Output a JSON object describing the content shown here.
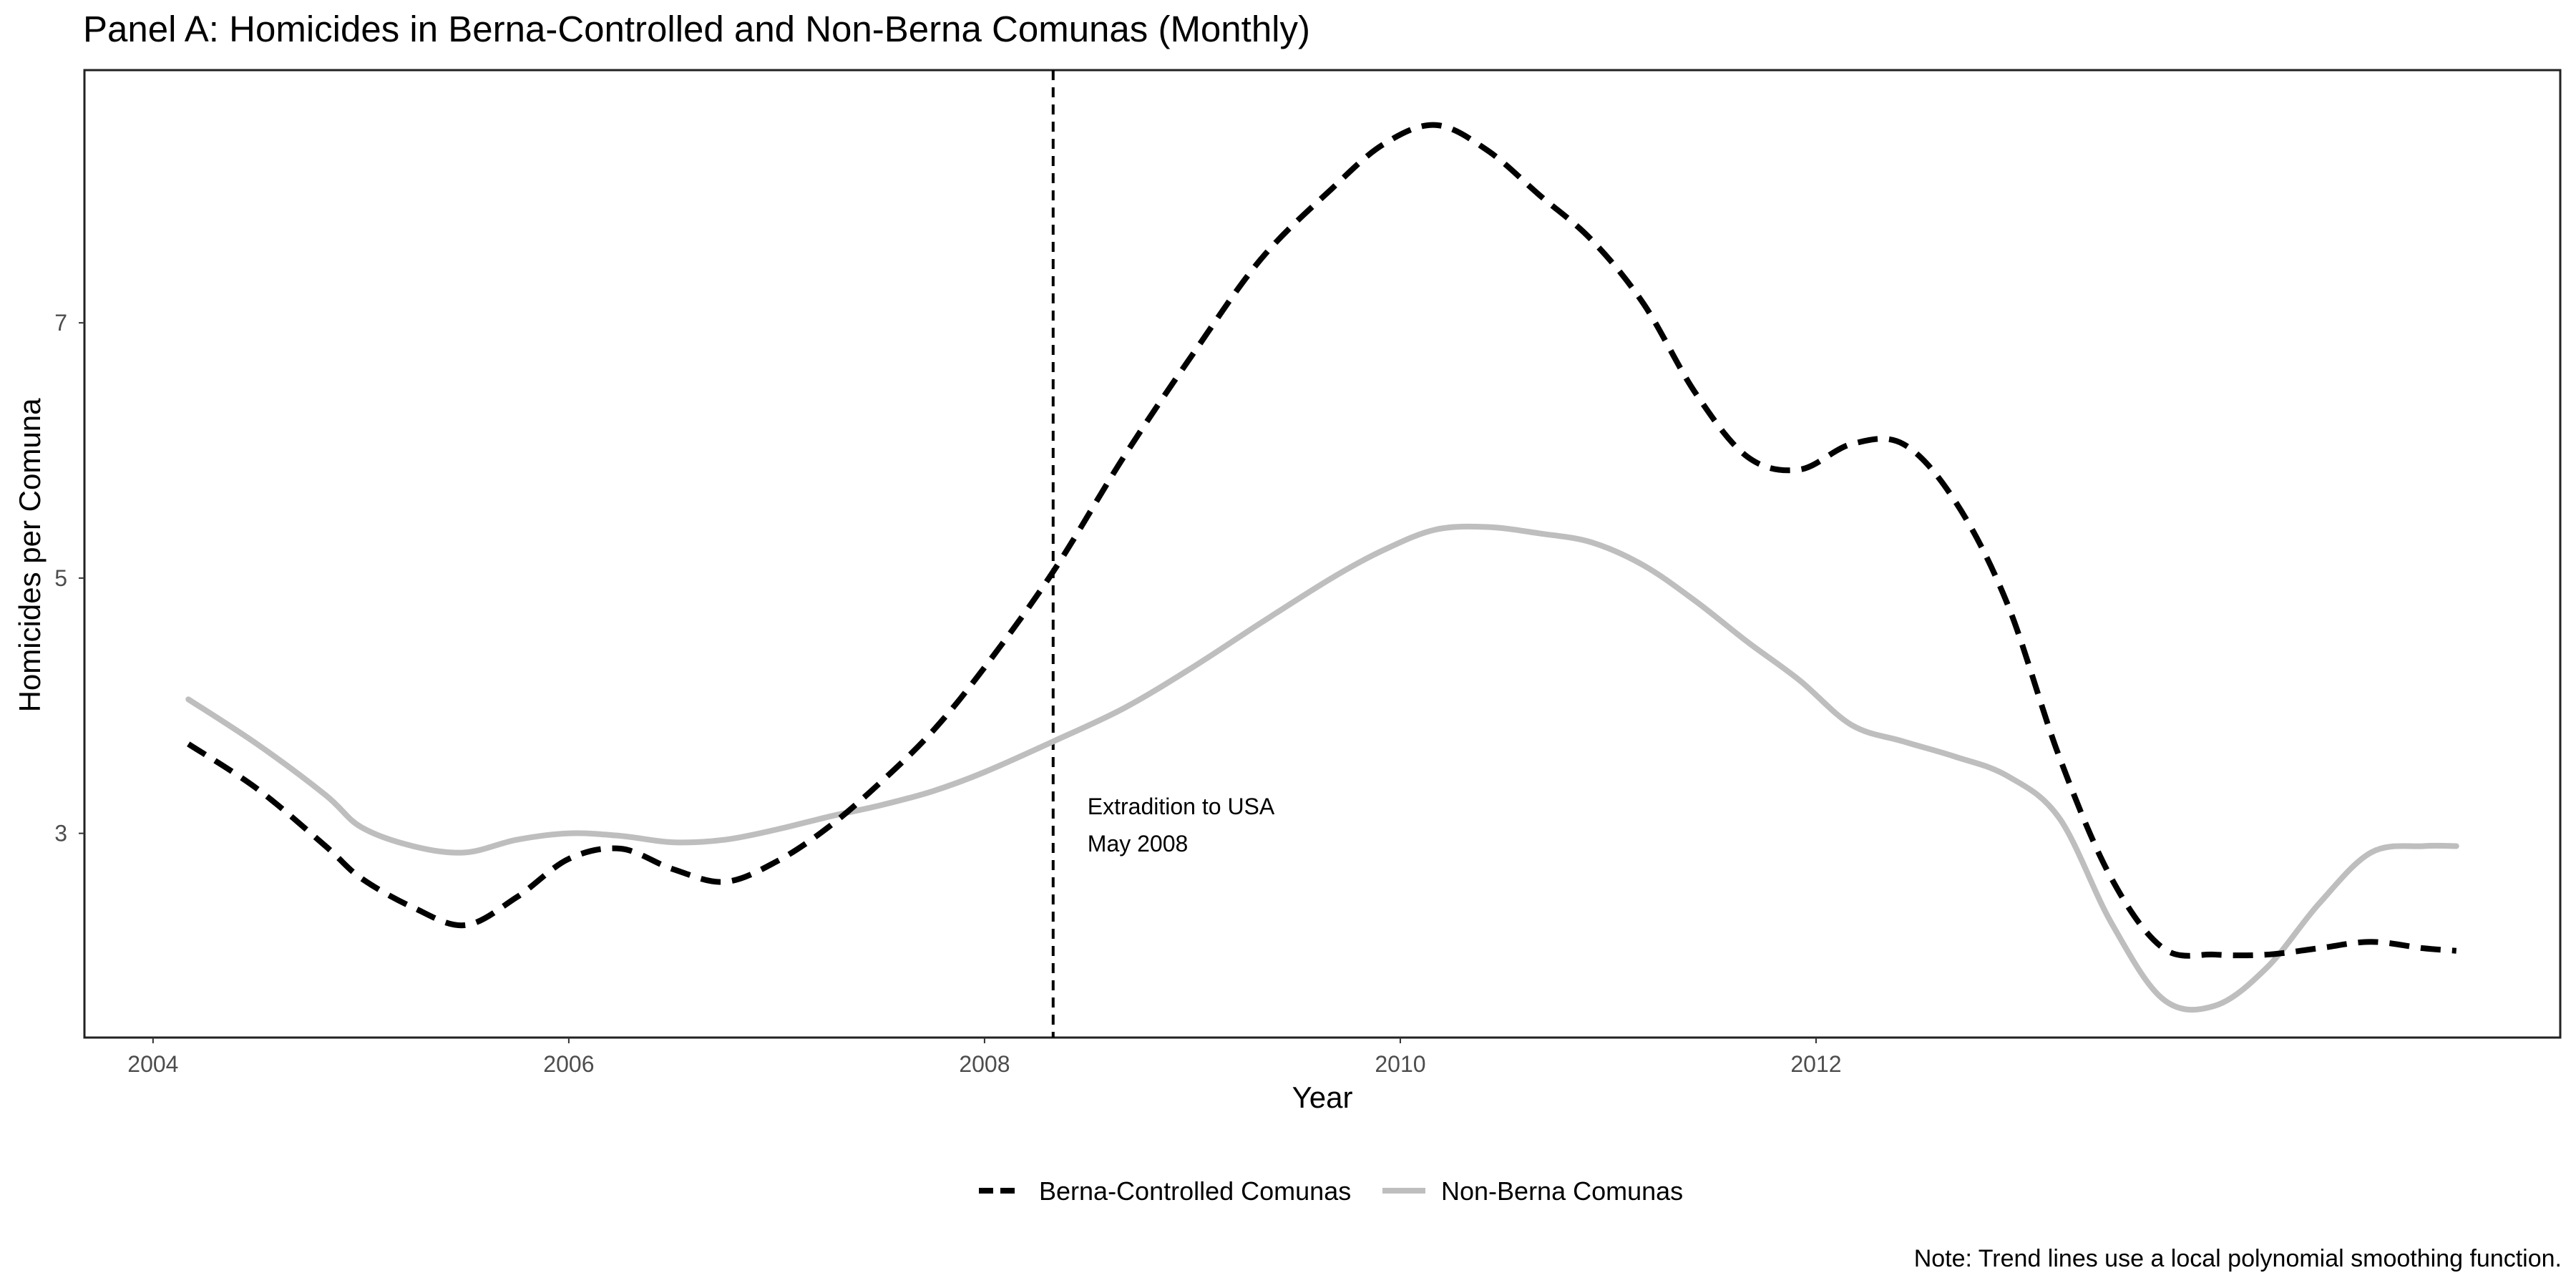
{
  "chart_data": {
    "type": "line",
    "title": "Panel A: Homicides in Berna-Controlled and Non-Berna Comunas (Monthly)",
    "xlabel": "Year",
    "ylabel": "Homicides per Comuna",
    "xlim": [
      2003.67,
      2015.58
    ],
    "ylim": [
      1.4,
      8.98
    ],
    "x_ticks": [
      2004,
      2006,
      2008,
      2010,
      2012
    ],
    "y_ticks": [
      3,
      5,
      7
    ],
    "grid": false,
    "legend_position": "bottom",
    "x": [
      2004.17,
      2004.5,
      2004.83,
      2005.0,
      2005.25,
      2005.5,
      2005.75,
      2006.0,
      2006.25,
      2006.5,
      2006.75,
      2007.0,
      2007.25,
      2007.5,
      2007.75,
      2008.0,
      2008.33,
      2008.67,
      2009.0,
      2009.33,
      2009.67,
      2009.92,
      2010.17,
      2010.42,
      2010.67,
      2010.92,
      2011.17,
      2011.42,
      2011.67,
      2011.92,
      2012.17,
      2012.42,
      2012.67,
      2012.92,
      2013.17,
      2013.42,
      2013.67,
      2013.92,
      2014.17,
      2014.42,
      2014.67,
      2014.92,
      2015.08
    ],
    "series": [
      {
        "name": "Berna-Controlled Comunas",
        "color": "#000000",
        "style": "dashed",
        "values": [
          3.7,
          3.35,
          2.9,
          2.65,
          2.42,
          2.28,
          2.5,
          2.8,
          2.88,
          2.72,
          2.62,
          2.78,
          3.05,
          3.4,
          3.8,
          4.3,
          5.05,
          5.95,
          6.75,
          7.5,
          8.05,
          8.4,
          8.55,
          8.35,
          8.0,
          7.65,
          7.15,
          6.45,
          5.95,
          5.85,
          6.05,
          6.05,
          5.6,
          4.8,
          3.6,
          2.65,
          2.1,
          2.05,
          2.05,
          2.1,
          2.15,
          2.1,
          2.08
        ]
      },
      {
        "name": "Non-Berna Comunas",
        "color": "#bebebe",
        "style": "solid",
        "values": [
          4.05,
          3.7,
          3.3,
          3.05,
          2.9,
          2.85,
          2.95,
          3.0,
          2.98,
          2.93,
          2.95,
          3.03,
          3.13,
          3.22,
          3.33,
          3.48,
          3.72,
          3.98,
          4.3,
          4.65,
          5.0,
          5.22,
          5.38,
          5.4,
          5.35,
          5.28,
          5.1,
          4.82,
          4.5,
          4.2,
          3.85,
          3.72,
          3.6,
          3.45,
          3.12,
          2.3,
          1.7,
          1.65,
          1.95,
          2.45,
          2.85,
          2.9,
          2.9
        ]
      }
    ],
    "annotations": [
      {
        "x": 2008.33,
        "label_line1": "Extradition to USA",
        "label_line2": "May 2008"
      }
    ],
    "note": "Note: Trend lines use a local polynomial smoothing function."
  }
}
